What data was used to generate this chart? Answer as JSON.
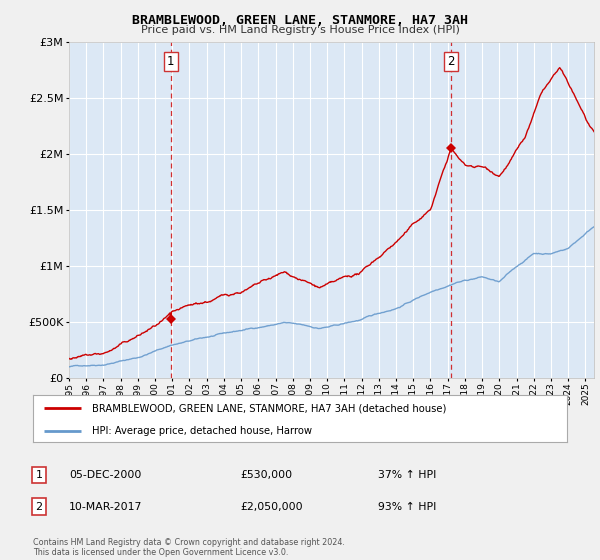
{
  "title": "BRAMBLEWOOD, GREEN LANE, STANMORE, HA7 3AH",
  "subtitle": "Price paid vs. HM Land Registry's House Price Index (HPI)",
  "ylabel_ticks": [
    "£0",
    "£500K",
    "£1M",
    "£1.5M",
    "£2M",
    "£2.5M",
    "£3M"
  ],
  "ytick_values": [
    0,
    500000,
    1000000,
    1500000,
    2000000,
    2500000,
    3000000
  ],
  "ylim": [
    0,
    3000000
  ],
  "xlim_start": 1995.0,
  "xlim_end": 2025.5,
  "point1_x": 2000.92,
  "point1_y": 530000,
  "point2_x": 2017.19,
  "point2_y": 2050000,
  "legend_line1": "BRAMBLEWOOD, GREEN LANE, STANMORE, HA7 3AH (detached house)",
  "legend_line2": "HPI: Average price, detached house, Harrow",
  "annot1_num": "1",
  "annot1_date": "05-DEC-2000",
  "annot1_price": "£530,000",
  "annot1_hpi": "37% ↑ HPI",
  "annot2_num": "2",
  "annot2_date": "10-MAR-2017",
  "annot2_price": "£2,050,000",
  "annot2_hpi": "93% ↑ HPI",
  "footer": "Contains HM Land Registry data © Crown copyright and database right 2024.\nThis data is licensed under the Open Government Licence v3.0.",
  "red_color": "#cc0000",
  "blue_color": "#6699cc",
  "bg_color": "#f0f0f0",
  "plot_bg": "#dce8f5",
  "grid_color": "#ffffff",
  "dashed_color": "#cc0000",
  "box_label_color": "#cc3333"
}
